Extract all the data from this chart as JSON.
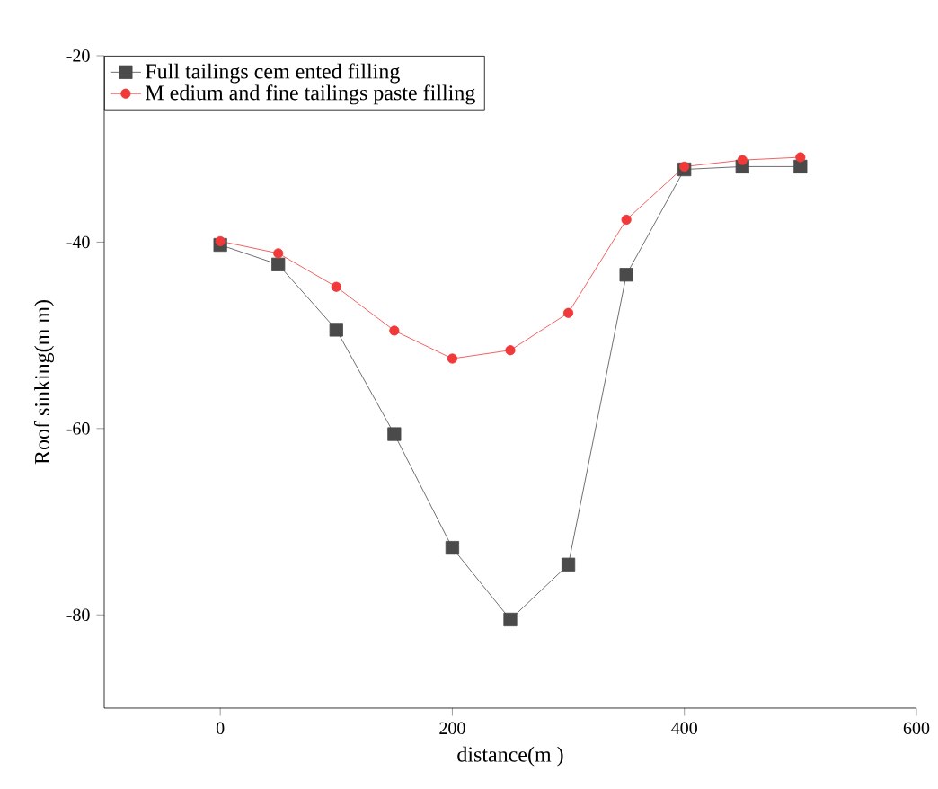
{
  "chart_data": {
    "type": "line",
    "xlabel": "distance(m )",
    "ylabel": "Roof sinking(m m)",
    "x": [
      0,
      50,
      100,
      150,
      200,
      250,
      300,
      350,
      400,
      450,
      500
    ],
    "series": [
      {
        "name": "Full tailings cem ented filling",
        "color": "#4a4a4a",
        "marker": "square",
        "values": [
          -40.3,
          -42.4,
          -49.4,
          -60.6,
          -72.8,
          -80.5,
          -74.6,
          -43.5,
          -32.2,
          -31.9,
          -31.9
        ]
      },
      {
        "name": "M edium  and fine tailings paste filling",
        "color": "#f03a3a",
        "marker": "circle",
        "values": [
          -39.9,
          -41.2,
          -44.8,
          -49.5,
          -52.5,
          -51.6,
          -47.6,
          -37.6,
          -31.9,
          -31.2,
          -30.9
        ]
      }
    ],
    "xlim": [
      -100,
      600
    ],
    "ylim": [
      -90,
      -20
    ],
    "xticks": [
      0,
      200,
      400,
      600
    ],
    "yticks": [
      -80,
      -60,
      -40,
      -20
    ],
    "legend": "top left",
    "grid": false,
    "line_style": "solid"
  }
}
